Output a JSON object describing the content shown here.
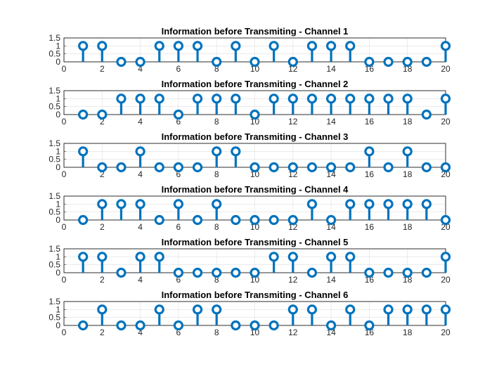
{
  "figure": {
    "line_color": "#0072BD",
    "background": "#ffffff"
  },
  "chart_data": [
    {
      "type": "stem",
      "title": "Information before Transmiting - Channel 1",
      "x": [
        1,
        2,
        3,
        4,
        5,
        6,
        7,
        8,
        9,
        10,
        11,
        12,
        13,
        14,
        15,
        16,
        17,
        18,
        19,
        20
      ],
      "values": [
        1,
        1,
        0,
        0,
        1,
        1,
        1,
        0,
        1,
        0,
        1,
        0,
        1,
        1,
        1,
        0,
        0,
        0,
        0,
        1
      ],
      "xlim": [
        0,
        20
      ],
      "ylim": [
        0,
        1.5
      ],
      "xticks": [
        0,
        2,
        4,
        6,
        8,
        10,
        12,
        14,
        16,
        18,
        20
      ],
      "yticks": [
        0,
        0.5,
        1,
        1.5
      ],
      "ytick_labels": [
        "0",
        "0.5",
        "1",
        "1.5"
      ],
      "grid": true
    },
    {
      "type": "stem",
      "title": "Information before Transmiting - Channel 2",
      "x": [
        1,
        2,
        3,
        4,
        5,
        6,
        7,
        8,
        9,
        10,
        11,
        12,
        13,
        14,
        15,
        16,
        17,
        18,
        19,
        20
      ],
      "values": [
        0,
        0,
        1,
        1,
        1,
        0,
        1,
        1,
        1,
        0,
        1,
        1,
        1,
        1,
        1,
        1,
        1,
        1,
        0,
        1
      ],
      "xlim": [
        0,
        20
      ],
      "ylim": [
        0,
        1.5
      ],
      "xticks": [
        0,
        2,
        4,
        6,
        8,
        10,
        12,
        14,
        16,
        18,
        20
      ],
      "yticks": [
        0,
        0.5,
        1,
        1.5
      ],
      "ytick_labels": [
        "0",
        "0.5",
        "1",
        "1.5"
      ],
      "grid": true
    },
    {
      "type": "stem",
      "title": "Information before Transmiting - Channel 3",
      "x": [
        1,
        2,
        3,
        4,
        5,
        6,
        7,
        8,
        9,
        10,
        11,
        12,
        13,
        14,
        15,
        16,
        17,
        18,
        19,
        20
      ],
      "values": [
        1,
        0,
        0,
        1,
        0,
        0,
        0,
        1,
        1,
        0,
        0,
        0,
        0,
        0,
        0,
        1,
        0,
        1,
        0,
        0
      ],
      "xlim": [
        0,
        20
      ],
      "ylim": [
        0,
        1.5
      ],
      "xticks": [
        0,
        2,
        4,
        6,
        8,
        10,
        12,
        14,
        16,
        18,
        20
      ],
      "yticks": [
        0,
        0.5,
        1,
        1.5
      ],
      "ytick_labels": [
        "0",
        "0.5",
        "1",
        "1.5"
      ],
      "grid": true
    },
    {
      "type": "stem",
      "title": "Information before Transmiting - Channel 4",
      "x": [
        1,
        2,
        3,
        4,
        5,
        6,
        7,
        8,
        9,
        10,
        11,
        12,
        13,
        14,
        15,
        16,
        17,
        18,
        19,
        20
      ],
      "values": [
        0,
        1,
        1,
        1,
        0,
        1,
        0,
        1,
        0,
        0,
        0,
        0,
        1,
        0,
        1,
        1,
        1,
        1,
        1,
        0
      ],
      "xlim": [
        0,
        20
      ],
      "ylim": [
        0,
        1.5
      ],
      "xticks": [
        0,
        2,
        4,
        6,
        8,
        10,
        12,
        14,
        16,
        18,
        20
      ],
      "yticks": [
        0,
        0.5,
        1,
        1.5
      ],
      "ytick_labels": [
        "0",
        "0.5",
        "1",
        "1.5"
      ],
      "grid": true
    },
    {
      "type": "stem",
      "title": "Information before Transmiting - Channel 5",
      "x": [
        1,
        2,
        3,
        4,
        5,
        6,
        7,
        8,
        9,
        10,
        11,
        12,
        13,
        14,
        15,
        16,
        17,
        18,
        19,
        20
      ],
      "values": [
        1,
        1,
        0,
        1,
        1,
        0,
        0,
        0,
        0,
        0,
        1,
        1,
        0,
        1,
        1,
        0,
        0,
        0,
        0,
        1
      ],
      "xlim": [
        0,
        20
      ],
      "ylim": [
        0,
        1.5
      ],
      "xticks": [
        0,
        2,
        4,
        6,
        8,
        10,
        12,
        14,
        16,
        18,
        20
      ],
      "yticks": [
        0,
        0.5,
        1,
        1.5
      ],
      "ytick_labels": [
        "0",
        "0.5",
        "1",
        "1.5"
      ],
      "grid": true
    },
    {
      "type": "stem",
      "title": "Information before Transmiting - Channel 6",
      "x": [
        1,
        2,
        3,
        4,
        5,
        6,
        7,
        8,
        9,
        10,
        11,
        12,
        13,
        14,
        15,
        16,
        17,
        18,
        19,
        20
      ],
      "values": [
        0,
        1,
        0,
        0,
        1,
        0,
        1,
        1,
        0,
        0,
        0,
        1,
        1,
        0,
        1,
        0,
        1,
        1,
        1,
        1
      ],
      "xlim": [
        0,
        20
      ],
      "ylim": [
        0,
        1.5
      ],
      "xticks": [
        0,
        2,
        4,
        6,
        8,
        10,
        12,
        14,
        16,
        18,
        20
      ],
      "yticks": [
        0,
        0.5,
        1,
        1.5
      ],
      "ytick_labels": [
        "0",
        "0.5",
        "1",
        "1.5"
      ],
      "grid": true
    }
  ]
}
